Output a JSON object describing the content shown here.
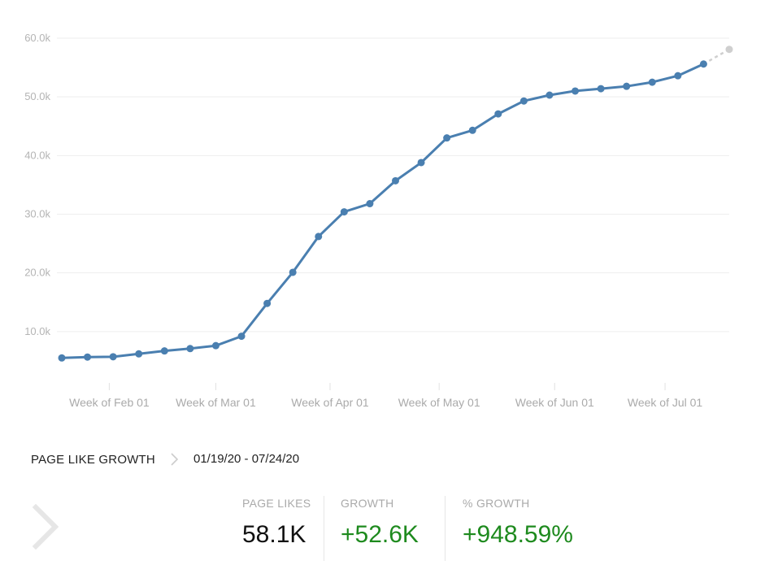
{
  "chart_data": {
    "type": "line",
    "title": "PAGE LIKE GROWTH",
    "xlabel": "",
    "ylabel": "",
    "ylim": [
      0,
      60000
    ],
    "y_ticks": [
      {
        "value": 10000,
        "label": "10.0k"
      },
      {
        "value": 20000,
        "label": "20.0k"
      },
      {
        "value": 30000,
        "label": "30.0k"
      },
      {
        "value": 40000,
        "label": "40.0k"
      },
      {
        "value": 50000,
        "label": "50.0k"
      },
      {
        "value": 60000,
        "label": "60.0k"
      }
    ],
    "x_ticks": [
      {
        "index": 1.85,
        "label": "Week of Feb 01"
      },
      {
        "index": 6.0,
        "label": "Week of Mar 01"
      },
      {
        "index": 10.45,
        "label": "Week of Apr 01"
      },
      {
        "index": 14.7,
        "label": "Week of May 01"
      },
      {
        "index": 19.2,
        "label": "Week of Jun 01"
      },
      {
        "index": 23.5,
        "label": "Week of Jul 01"
      }
    ],
    "series": [
      {
        "name": "Page Likes",
        "color": "#4a7fb0",
        "values": [
          5500,
          5650,
          5700,
          6200,
          6700,
          7100,
          7600,
          9200,
          14800,
          20100,
          26200,
          30400,
          31800,
          35700,
          38800,
          43000,
          44300,
          47100,
          49300,
          50300,
          51000,
          51400,
          51800,
          52500,
          53600,
          55600
        ]
      },
      {
        "name": "Projection",
        "color": "#cfcfcf",
        "dashed": true,
        "start_index": 25,
        "values": [
          55600,
          58100
        ]
      }
    ]
  },
  "summary": {
    "title": "PAGE LIKE GROWTH",
    "date_range": "01/19/20 - 07/24/20",
    "metrics": [
      {
        "label": "PAGE LIKES",
        "value": "58.1K"
      },
      {
        "label": "GROWTH",
        "value": "+52.6K"
      },
      {
        "label": "% GROWTH",
        "value": "+948.59%"
      }
    ]
  },
  "colors": {
    "series": "#4a7fb0",
    "projection": "#cfcfcf",
    "positive": "#1e8a1e"
  }
}
